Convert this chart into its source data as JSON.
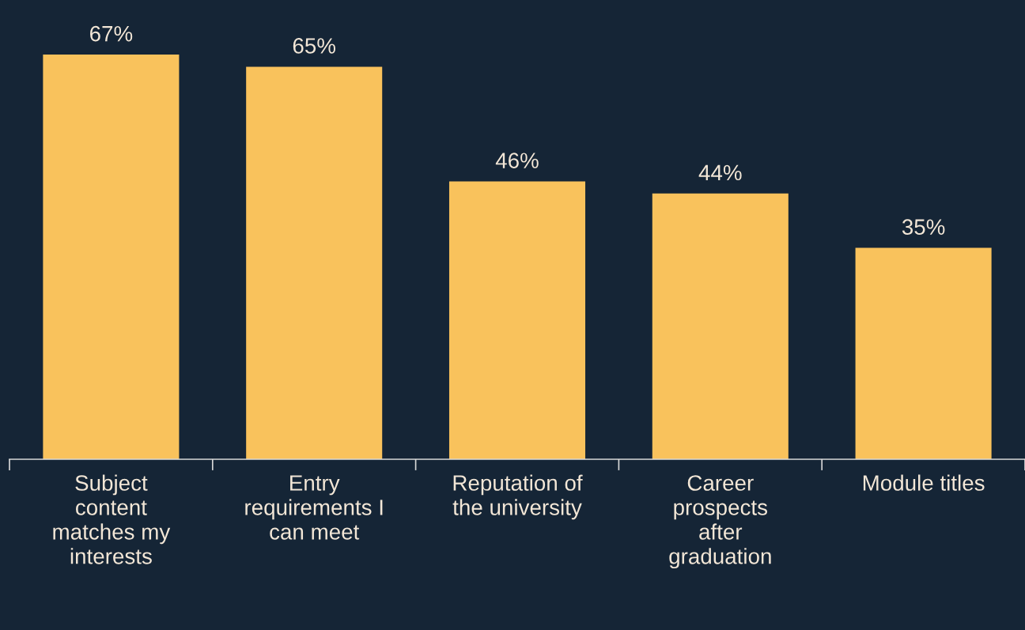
{
  "chart_data": {
    "type": "bar",
    "categories": [
      "Subject\ncontent\nmatches my\ninterests",
      "Entry\nrequirements I\ncan meet",
      "Reputation of\nthe university",
      "Career\nprospects\nafter\ngraduation",
      "Module titles"
    ],
    "values": [
      67,
      65,
      46,
      44,
      35
    ],
    "value_labels": [
      "67%",
      "65%",
      "46%",
      "44%",
      "35%"
    ],
    "color": "#f9c25c",
    "tick_labels": "x",
    "grid": false,
    "legend": false
  }
}
